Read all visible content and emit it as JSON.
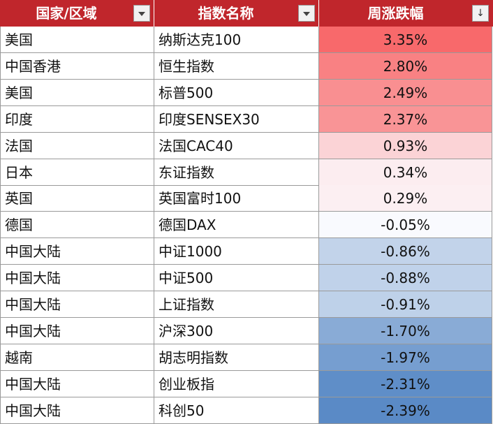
{
  "header": {
    "columns": [
      {
        "label": "国家/区域",
        "filter": "dropdown"
      },
      {
        "label": "指数名称",
        "filter": "dropdown"
      },
      {
        "label": "周涨跌幅",
        "filter": "sorted-descending",
        "sort_glyph": "↓"
      }
    ]
  },
  "colors": {
    "header_bg": "#c0262c",
    "header_text": "#ffffff",
    "positive_max": "#f8696b",
    "neutral": "#fcfcff",
    "negative_max": "#5a8ac6"
  },
  "rows": [
    {
      "region": "美国",
      "index": "纳斯达克100",
      "change": "3.35%",
      "value": 3.35
    },
    {
      "region": "中国香港",
      "index": "恒生指数",
      "change": "2.80%",
      "value": 2.8
    },
    {
      "region": "美国",
      "index": "标普500",
      "change": "2.49%",
      "value": 2.49
    },
    {
      "region": "印度",
      "index": "印度SENSEX30",
      "change": "2.37%",
      "value": 2.37
    },
    {
      "region": "法国",
      "index": "法国CAC40",
      "change": "0.93%",
      "value": 0.93
    },
    {
      "region": "日本",
      "index": "东证指数",
      "change": "0.34%",
      "value": 0.34
    },
    {
      "region": "英国",
      "index": "英国富时100",
      "change": "0.29%",
      "value": 0.29
    },
    {
      "region": "德国",
      "index": "德国DAX",
      "change": "-0.05%",
      "value": -0.05
    },
    {
      "region": "中国大陆",
      "index": "中证1000",
      "change": "-0.86%",
      "value": -0.86
    },
    {
      "region": "中国大陆",
      "index": "中证500",
      "change": "-0.88%",
      "value": -0.88
    },
    {
      "region": "中国大陆",
      "index": "上证指数",
      "change": "-0.91%",
      "value": -0.91
    },
    {
      "region": "中国大陆",
      "index": "沪深300",
      "change": "-1.70%",
      "value": -1.7
    },
    {
      "region": "越南",
      "index": "胡志明指数",
      "change": "-1.97%",
      "value": -1.97
    },
    {
      "region": "中国大陆",
      "index": "创业板指",
      "change": "-2.31%",
      "value": -2.31
    },
    {
      "region": "中国大陆",
      "index": "科创50",
      "change": "-2.39%",
      "value": -2.39
    }
  ]
}
